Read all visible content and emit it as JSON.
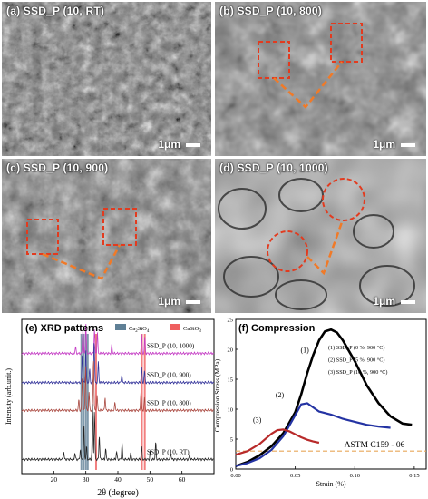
{
  "figure": {
    "panels": {
      "a": {
        "label": "(a) SSD_P (10, RT)",
        "scale": "1μm"
      },
      "b": {
        "label": "(b) SSD_P (10, 800)",
        "scale": "1μm"
      },
      "c": {
        "label": "(c) SSD_P (10, 900)",
        "scale": "1μm"
      },
      "d": {
        "label": "(d) SSD_P (10, 1000)",
        "scale": "1μm"
      }
    }
  },
  "chart_data": [
    {
      "type": "line",
      "title": "(e) XRD patterns",
      "xlabel": "2θ (degree)",
      "ylabel": "Intensity (arb.unit.)",
      "xlim": [
        10,
        70
      ],
      "xticks": [
        20,
        30,
        40,
        50,
        60
      ],
      "legend": [
        "Ca2SiO4",
        "CaSiO3"
      ],
      "legend_colors": [
        "#5f8096",
        "#ef5f5f"
      ],
      "legend_placement": "top",
      "reference_bands": {
        "Ca2SiO4": [
          28.6,
          29.3,
          30.0,
          30.6
        ],
        "CaSiO3": [
          33.2,
          47.5,
          48.4
        ]
      },
      "series": [
        {
          "name": "SSD_P (10, 1000)",
          "color": "#c43bc4",
          "baseline": 0.88,
          "peaks": [
            [
              26.8,
              0.05
            ],
            [
              29.1,
              0.2
            ],
            [
              30.0,
              0.24
            ],
            [
              32.7,
              0.18
            ],
            [
              33.6,
              0.16
            ],
            [
              38.1,
              0.06
            ],
            [
              47.4,
              0.15
            ],
            [
              48.4,
              0.12
            ]
          ]
        },
        {
          "name": "SSD_P (10, 900)",
          "color": "#33339a",
          "baseline": 0.66,
          "peaks": [
            [
              28.9,
              0.22
            ],
            [
              30.0,
              0.26
            ],
            [
              31.2,
              0.1
            ],
            [
              32.6,
              0.32
            ],
            [
              33.9,
              0.16
            ],
            [
              41.2,
              0.06
            ],
            [
              47.4,
              0.12
            ],
            [
              48.3,
              0.09
            ]
          ]
        },
        {
          "name": "SSD_P (10, 800)",
          "color": "#a9473f",
          "baseline": 0.45,
          "peaks": [
            [
              27.8,
              0.08
            ],
            [
              28.9,
              0.26
            ],
            [
              29.9,
              0.34
            ],
            [
              31.0,
              0.14
            ],
            [
              32.4,
              0.4
            ],
            [
              33.5,
              0.12
            ],
            [
              36.0,
              0.1
            ],
            [
              39.1,
              0.06
            ],
            [
              47.2,
              0.14
            ],
            [
              48.3,
              0.1
            ]
          ]
        },
        {
          "name": "SSD_P (10, RT)",
          "color": "#222222",
          "baseline": 0.08,
          "peaks": [
            [
              23.1,
              0.06
            ],
            [
              26.6,
              0.05
            ],
            [
              28.3,
              0.08
            ],
            [
              29.4,
              0.26
            ],
            [
              30.2,
              0.1
            ],
            [
              32.1,
              0.42
            ],
            [
              32.7,
              0.36
            ],
            [
              34.2,
              0.18
            ],
            [
              36.2,
              0.08
            ],
            [
              39.6,
              0.06
            ],
            [
              41.3,
              0.12
            ],
            [
              44.0,
              0.05
            ],
            [
              47.4,
              0.1
            ],
            [
              50.1,
              0.06
            ],
            [
              51.8,
              0.13
            ],
            [
              56.5,
              0.05
            ],
            [
              62.4,
              0.04
            ]
          ]
        }
      ]
    },
    {
      "type": "line",
      "title": "(f) Compression",
      "xlabel": "Strain (%)",
      "ylabel": "Compression Stress (MPa)",
      "xlim": [
        0,
        0.16
      ],
      "ylim": [
        0,
        25
      ],
      "xticks": [
        0.0,
        0.05,
        0.1,
        0.15
      ],
      "yticks": [
        0,
        5,
        10,
        15,
        20,
        25
      ],
      "tick_labels_x": [
        "0.00",
        "0.05",
        "0.10",
        "0.15"
      ],
      "tick_labels_y": [
        "0",
        "5",
        "10",
        "15",
        "20",
        "25"
      ],
      "legend": [
        "(1) SSD_P (0 %, 900 °C)",
        "(2) SSD_P (5 %, 900 °C)",
        "(3) SSD_P (10 %, 900 °C)"
      ],
      "legend_placement": "top-right",
      "curve_markers": [
        "(1)",
        "(2)",
        "(3)"
      ],
      "reference_line": {
        "label": "ASTM C159 - 06",
        "y": 3,
        "color": "#e8a75a"
      },
      "series": [
        {
          "name": "(1)",
          "color": "#000000",
          "x": [
            0.0,
            0.01,
            0.02,
            0.03,
            0.04,
            0.05,
            0.055,
            0.06,
            0.065,
            0.07,
            0.075,
            0.08,
            0.085,
            0.09,
            0.1,
            0.11,
            0.12,
            0.13,
            0.14,
            0.148
          ],
          "y": [
            0.5,
            1.2,
            2.3,
            3.8,
            6.0,
            9.5,
            12.5,
            16.0,
            19.0,
            21.5,
            23.0,
            23.3,
            22.8,
            21.5,
            18.0,
            14.0,
            11.0,
            8.8,
            7.6,
            7.4
          ]
        },
        {
          "name": "(2)",
          "color": "#2433a3",
          "x": [
            0.0,
            0.01,
            0.02,
            0.03,
            0.04,
            0.05,
            0.055,
            0.06,
            0.065,
            0.07,
            0.08,
            0.09,
            0.1,
            0.11,
            0.12,
            0.13
          ],
          "y": [
            0.5,
            1.0,
            1.8,
            3.2,
            5.5,
            9.0,
            10.8,
            11.0,
            10.3,
            9.6,
            9.1,
            8.4,
            7.9,
            7.4,
            7.1,
            6.9
          ]
        },
        {
          "name": "(3)",
          "color": "#b82a2a",
          "x": [
            0.0,
            0.01,
            0.02,
            0.03,
            0.035,
            0.04,
            0.045,
            0.05,
            0.055,
            0.06,
            0.065,
            0.07
          ],
          "y": [
            2.4,
            3.0,
            4.2,
            5.9,
            6.5,
            6.6,
            6.3,
            5.8,
            5.3,
            4.9,
            4.6,
            4.4
          ]
        }
      ]
    }
  ]
}
